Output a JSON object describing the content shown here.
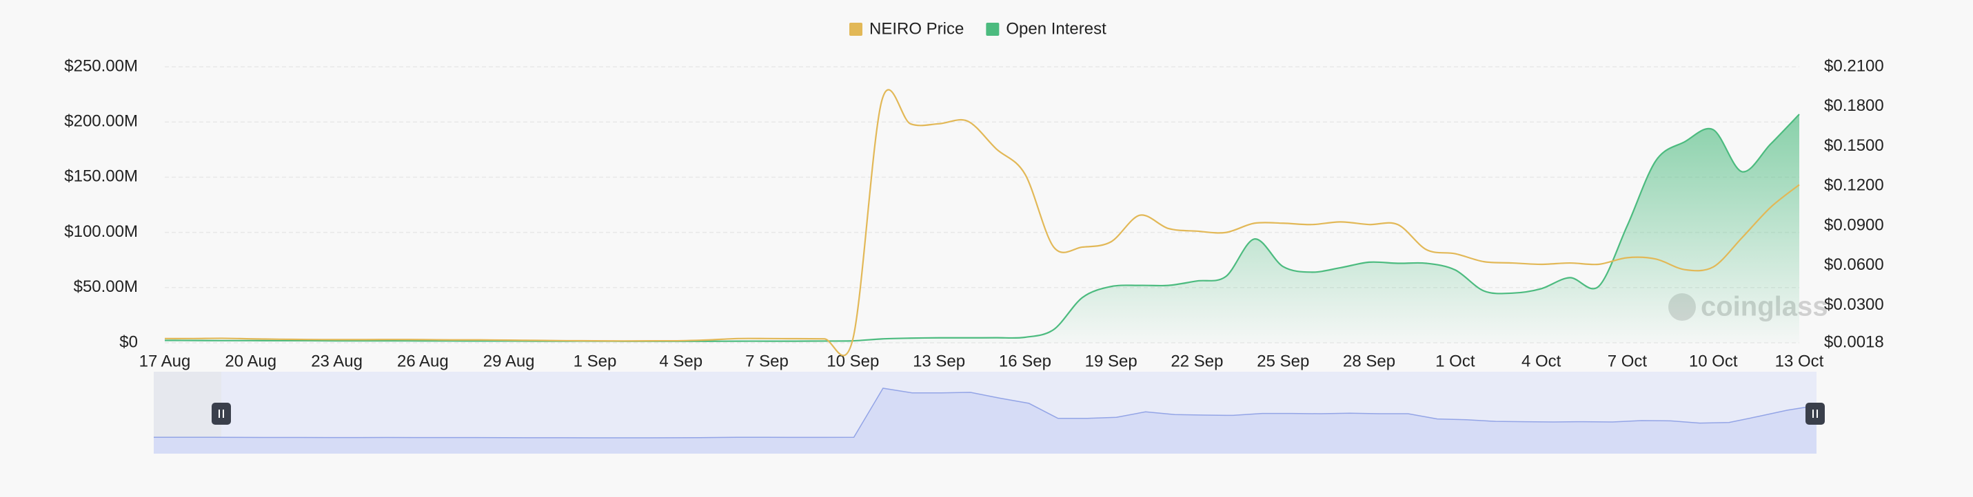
{
  "chart_data": {
    "type": "line",
    "watermark": "coinglass",
    "categories": [
      "17 Aug",
      null,
      null,
      "20 Aug",
      null,
      null,
      "23 Aug",
      null,
      null,
      "26 Aug",
      null,
      null,
      "29 Aug",
      null,
      null,
      "1 Sep",
      null,
      null,
      "4 Sep",
      null,
      null,
      "7 Sep",
      null,
      null,
      "10 Sep",
      null,
      null,
      "13 Sep",
      null,
      null,
      "16 Sep",
      null,
      null,
      "19 Sep",
      null,
      null,
      "22 Sep",
      null,
      null,
      "25 Sep",
      null,
      null,
      "28 Sep",
      null,
      null,
      "1 Oct",
      null,
      null,
      "4 Oct",
      null,
      null,
      "7 Oct",
      null,
      null,
      "10 Oct",
      null,
      null,
      "13 Oct"
    ],
    "series": [
      {
        "name": "NEIRO Price",
        "color": "#e2b857",
        "axis": "y2",
        "values": [
          0.005,
          0.005,
          0.0052,
          0.0048,
          0.0045,
          0.0043,
          0.0042,
          0.0042,
          0.0043,
          0.0042,
          0.004,
          0.004,
          0.0038,
          0.0036,
          0.0034,
          0.0033,
          0.0032,
          0.0033,
          0.0034,
          0.004,
          0.005,
          0.005,
          0.0049,
          0.0048,
          0.005,
          0.184,
          0.167,
          0.167,
          0.169,
          0.148,
          0.129,
          0.074,
          0.074,
          0.078,
          0.098,
          0.088,
          0.086,
          0.085,
          0.092,
          0.092,
          0.091,
          0.093,
          0.091,
          0.091,
          0.072,
          0.069,
          0.063,
          0.062,
          0.061,
          0.062,
          0.061,
          0.066,
          0.065,
          0.057,
          0.059,
          0.081,
          0.104,
          0.121
        ]
      },
      {
        "name": "Open Interest",
        "color": "#4cbb7f",
        "fill": true,
        "values": [
          2200000,
          2100000,
          2000000,
          2000000,
          1900000,
          1900000,
          1800000,
          1800000,
          1800000,
          1700000,
          1700000,
          1600000,
          1600000,
          1500000,
          1500000,
          1500000,
          1400000,
          1400000,
          1400000,
          1400000,
          1500000,
          1500000,
          1500000,
          1600000,
          1800000,
          3500000,
          4200000,
          4500000,
          4500000,
          4600000,
          5000000,
          12000000,
          41000000,
          51000000,
          52000000,
          52000000,
          56000000,
          60000000,
          94000000,
          69000000,
          64000000,
          68000000,
          73000000,
          72000000,
          72000000,
          66000000,
          47000000,
          45000000,
          49000000,
          59000000,
          51000000,
          106000000,
          165000000,
          182000000,
          193000000,
          155000000,
          180000000,
          207000000
        ]
      }
    ],
    "ylim": [
      0,
      250000000
    ],
    "yticks": [
      {
        "value": 0,
        "label": "$0"
      },
      {
        "value": 50000000,
        "label": "$50.00M"
      },
      {
        "value": 100000000,
        "label": "$100.00M"
      },
      {
        "value": 150000000,
        "label": "$150.00M"
      },
      {
        "value": 200000000,
        "label": "$200.00M"
      },
      {
        "value": 250000000,
        "label": "$250.00M"
      }
    ],
    "y2lim": [
      0.0018,
      0.21
    ],
    "y2ticks": [
      {
        "value": 0.0018,
        "label": "$0.0018"
      },
      {
        "value": 0.03,
        "label": "$0.0300"
      },
      {
        "value": 0.06,
        "label": "$0.0600"
      },
      {
        "value": 0.09,
        "label": "$0.0900"
      },
      {
        "value": 0.12,
        "label": "$0.1200"
      },
      {
        "value": 0.15,
        "label": "$0.1500"
      },
      {
        "value": 0.18,
        "label": "$0.1800"
      },
      {
        "value": 0.21,
        "label": "$0.2100"
      }
    ],
    "grid": true,
    "legend": "top"
  }
}
